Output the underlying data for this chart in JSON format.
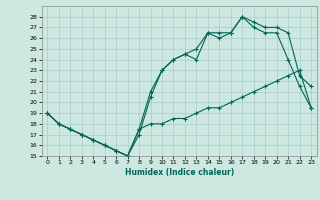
{
  "xlabel": "Humidex (Indice chaleur)",
  "background_color": "#cce8e0",
  "grid_color": "#aacccc",
  "line_color": "#006655",
  "xlim": [
    -0.5,
    23.5
  ],
  "ylim": [
    15,
    29
  ],
  "xticks": [
    0,
    1,
    2,
    3,
    4,
    5,
    6,
    7,
    8,
    9,
    10,
    11,
    12,
    13,
    14,
    15,
    16,
    17,
    18,
    19,
    20,
    21,
    22,
    23
  ],
  "yticks": [
    15,
    16,
    17,
    18,
    19,
    20,
    21,
    22,
    23,
    24,
    25,
    26,
    27,
    28
  ],
  "line1_x": [
    0,
    1,
    2,
    3,
    4,
    5,
    6,
    7,
    8,
    9,
    10,
    11,
    12,
    13,
    14,
    15,
    16,
    17,
    18,
    19,
    20,
    21,
    22,
    23
  ],
  "line1_y": [
    19,
    18,
    17.5,
    17,
    16.5,
    16,
    15.5,
    15,
    17,
    20.5,
    23,
    24,
    24.5,
    24,
    26.5,
    26.5,
    26.5,
    28,
    27,
    26.5,
    26.5,
    24,
    21.5,
    19.5
  ],
  "line2_x": [
    0,
    1,
    2,
    3,
    4,
    5,
    6,
    7,
    8,
    9,
    10,
    11,
    12,
    13,
    14,
    15,
    16,
    17,
    18,
    19,
    20,
    21,
    22,
    23
  ],
  "line2_y": [
    19,
    18,
    17.5,
    17,
    16.5,
    16,
    15.5,
    15,
    17.5,
    21,
    23,
    24,
    24.5,
    25,
    26.5,
    26,
    26.5,
    28,
    27.5,
    27,
    27,
    26.5,
    22.5,
    21.5
  ],
  "line3_x": [
    0,
    1,
    2,
    3,
    4,
    5,
    6,
    7,
    8,
    9,
    10,
    11,
    12,
    13,
    14,
    15,
    16,
    17,
    18,
    19,
    20,
    21,
    22,
    23
  ],
  "line3_y": [
    19,
    18,
    17.5,
    17,
    16.5,
    16,
    15.5,
    15,
    17.5,
    18,
    18,
    18.5,
    18.5,
    19,
    19.5,
    19.5,
    20,
    20.5,
    21,
    21.5,
    22,
    22.5,
    23,
    19.5
  ]
}
